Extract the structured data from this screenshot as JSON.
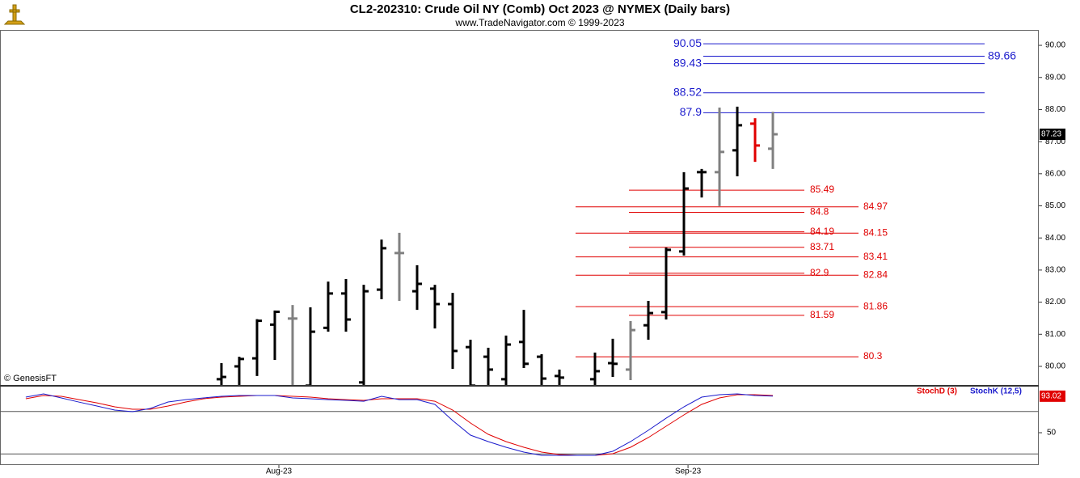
{
  "chart_data": [
    {
      "type": "ohlc",
      "title": "CL2-202310:  Crude Oil NY (Comb) Oct 2023 @ NYMEX  (Daily bars)",
      "subtitle": "www.TradeNavigator.com © 1999-2023",
      "watermark": "© GenesisFT",
      "x": [
        0,
        1,
        2,
        3,
        4,
        5,
        6,
        7,
        8,
        9,
        10,
        11,
        12,
        13,
        14,
        15,
        16,
        17,
        18,
        19,
        21,
        22,
        23,
        24,
        25,
        26,
        27,
        28,
        29,
        30,
        31
      ],
      "open": [
        79.6,
        80.0,
        80.25,
        81.3,
        81.49,
        79.4,
        81.2,
        82.27,
        79.5,
        82.39,
        83.53,
        82.34,
        82.42,
        81.94,
        80.6,
        80.3,
        79.6,
        80.76,
        80.3,
        79.7,
        79.6,
        80.1,
        79.9,
        81.28,
        81.69,
        83.58,
        86.05,
        86.05,
        86.73,
        87.56,
        86.78
      ],
      "high": [
        80.1,
        80.3,
        81.47,
        81.74,
        81.91,
        81.84,
        82.64,
        82.72,
        82.54,
        83.95,
        84.16,
        83.15,
        82.54,
        82.29,
        80.83,
        80.58,
        80.96,
        81.76,
        80.38,
        79.9,
        80.43,
        80.86,
        81.41,
        82.04,
        83.7,
        86.05,
        86.15,
        88.06,
        88.09,
        87.73,
        87.93
      ],
      "low": [
        79.3,
        79.3,
        79.7,
        80.2,
        79.3,
        79.3,
        81.08,
        81.08,
        79.3,
        82.09,
        82.04,
        81.76,
        81.18,
        79.92,
        79.3,
        79.3,
        79.3,
        79.95,
        79.3,
        79.3,
        79.3,
        79.67,
        79.57,
        80.83,
        81.46,
        83.45,
        85.26,
        84.99,
        85.92,
        86.37,
        86.15
      ],
      "close": [
        79.67,
        80.23,
        81.42,
        81.7,
        81.49,
        81.08,
        82.27,
        81.46,
        82.34,
        83.68,
        83.53,
        82.57,
        81.94,
        80.48,
        79.4,
        79.9,
        80.68,
        80.08,
        79.62,
        79.65,
        79.85,
        80.08,
        81.13,
        81.66,
        83.63,
        85.54,
        86.05,
        86.68,
        87.51,
        86.88,
        87.23
      ],
      "colors": [
        "#000",
        "#000",
        "#000",
        "#000",
        "#808080",
        "#000",
        "#000",
        "#000",
        "#000",
        "#000",
        "#808080",
        "#000",
        "#000",
        "#000",
        "#000",
        "#000",
        "#000",
        "#000",
        "#000",
        "#000",
        "#000",
        "#000",
        "#808080",
        "#000",
        "#000",
        "#000",
        "#000",
        "#808080",
        "#000",
        "#e00000",
        "#808080"
      ],
      "xlim": [
        -12.45,
        45.95
      ],
      "ylim": [
        79.42,
        90.48
      ],
      "yticks": [
        {
          "value": 80,
          "label": "80.00"
        },
        {
          "value": 81,
          "label": "81.00"
        },
        {
          "value": 82,
          "label": "82.00"
        },
        {
          "value": 83,
          "label": "83.00"
        },
        {
          "value": 84,
          "label": "84.00"
        },
        {
          "value": 85,
          "label": "85.00"
        },
        {
          "value": 86,
          "label": "86.00"
        },
        {
          "value": 87,
          "label": "87.00"
        },
        {
          "value": 88,
          "label": "88.00"
        },
        {
          "value": 89,
          "label": "89.00"
        },
        {
          "value": 90,
          "label": "90.00"
        }
      ],
      "levels": [
        {
          "color": "#1a1acc",
          "values": [
            90.05,
            89.43,
            88.52,
            87.9
          ]
        },
        {
          "color": "#1a1acc",
          "values": [
            89.66
          ]
        },
        {
          "color": "#e00000",
          "values": [
            85.49,
            84.8,
            84.19,
            83.71,
            82.9,
            81.59
          ]
        },
        {
          "color": "#e00000",
          "values": [
            84.97,
            84.15,
            83.41,
            82.84,
            81.86,
            80.3
          ]
        }
      ]
    },
    {
      "type": "line",
      "x": [
        -11,
        -10,
        -9,
        -8,
        -7,
        -6,
        -5,
        -4,
        -3,
        -2,
        -1,
        0,
        1,
        2,
        3,
        4,
        5,
        6,
        7,
        8,
        9,
        10,
        11,
        12,
        13,
        14,
        15,
        16,
        17,
        18,
        19,
        20,
        21,
        22,
        23,
        24,
        25,
        26,
        27,
        28,
        29,
        30,
        31
      ],
      "series": [
        {
          "name": "StochD (3)",
          "color": "#e00000",
          "values": [
            90,
            93.8,
            92.9,
            89,
            85.2,
            80.5,
            77.6,
            77.6,
            81.4,
            86.2,
            90,
            91.9,
            92.9,
            93.8,
            93.8,
            92.9,
            91.9,
            90,
            89,
            88.1,
            90,
            90,
            90,
            87.1,
            76.7,
            61.4,
            48.1,
            39.5,
            32.9,
            27.1,
            24.3,
            23.3,
            23.3,
            25.2,
            32.9,
            44.3,
            57.6,
            71,
            83.3,
            91,
            94.8,
            94.8,
            93.8
          ]
        },
        {
          "name": "StochK (12,5)",
          "color": "#1a1acc",
          "values": [
            91.9,
            95.7,
            91,
            86,
            81.4,
            76.7,
            74.8,
            78.6,
            86.2,
            89,
            91,
            92.9,
            93.8,
            93.8,
            93.8,
            91,
            90,
            89,
            88.1,
            87.1,
            92.9,
            89,
            89,
            83.3,
            64.3,
            47.1,
            39.5,
            32.9,
            27.1,
            23.3,
            23.3,
            23.3,
            23.3,
            28.1,
            39.5,
            52.9,
            67.1,
            80.5,
            91.9,
            94.8,
            95.7,
            93.8,
            93.02
          ]
        }
      ],
      "xlim": [
        -12.45,
        45.95
      ],
      "xticks": [
        {
          "value": 3.23,
          "label": "Aug-23"
        },
        {
          "value": 26.23,
          "label": "Sep-23"
        }
      ],
      "ylim": [
        11.9,
        104.3
      ],
      "yticks": [
        50
      ],
      "hlines": [
        25,
        75
      ]
    }
  ]
}
